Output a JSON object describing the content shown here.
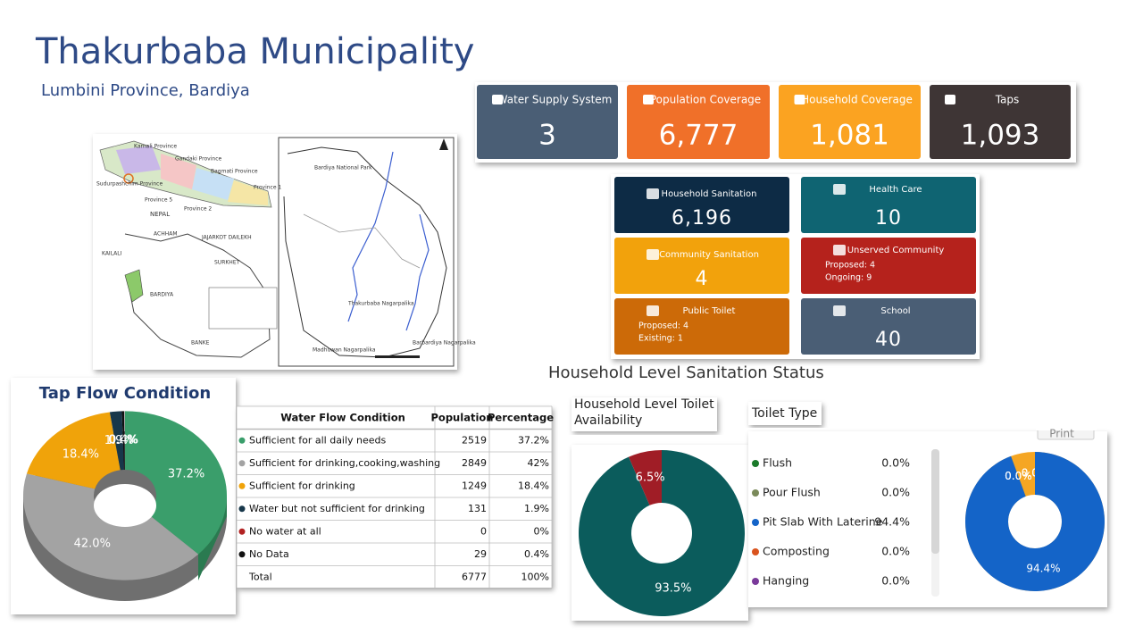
{
  "header": {
    "title": "Thakurbaba Municipality",
    "subtitle": "Lumbini Province, Bardiya"
  },
  "kpis": [
    {
      "label": "Water Supply System",
      "value": "3",
      "color": "#4a5e75"
    },
    {
      "label": "Population Coverage",
      "value": "6,777",
      "color": "#f07029"
    },
    {
      "label": "Household Coverage",
      "value": "1,081",
      "color": "#fba321"
    },
    {
      "label": "Taps",
      "value": "1,093",
      "color": "#3e3535"
    }
  ],
  "sanitation_cards": [
    {
      "label": "Household Sanitation",
      "value": "6,196",
      "color": "#0d2b45"
    },
    {
      "label": "Health Care",
      "value": "10",
      "color": "#0f6472"
    },
    {
      "label": "Community Sanitation",
      "value": "4",
      "color": "#f2a20c"
    },
    {
      "label": "Unserved Community",
      "lines": [
        "Proposed: 4",
        "Ongoing: 9"
      ],
      "color": "#b5221c"
    },
    {
      "label": "Public Toilet",
      "lines": [
        "Proposed: 4",
        "Existing: 1"
      ],
      "color": "#cc6a08"
    },
    {
      "label": "School",
      "value": "40",
      "color": "#4a5e75"
    }
  ],
  "map": {
    "labels": [
      "Karnali Province",
      "Gandaki Province",
      "Bagmati Province",
      "Province 1",
      "Sudurpashchim Province",
      "Province 5",
      "Province 2",
      "NEPAL",
      "ACHHAM",
      "JAJARKOT DAILEKH",
      "KAILALI",
      "SURKHET",
      "BARDIYA",
      "BANKE",
      "Bardiya National Park",
      "Thakurbaba Nagarpalika",
      "Madhuwan Nagarpalika",
      "Barbardiya Nagarpalika"
    ]
  },
  "table": {
    "columns": [
      "Water Flow Condition",
      "Population",
      "Percentage"
    ],
    "rows": [
      [
        "Sufficient for all daily needs",
        "2519",
        "37.2%"
      ],
      [
        "Sufficient for drinking,cooking,washing",
        "2849",
        "42%"
      ],
      [
        "Sufficient for drinking",
        "1249",
        "18.4%"
      ],
      [
        "Water but not sufficient for drinking",
        "131",
        "1.9%"
      ],
      [
        "No water at all",
        "0",
        "0%"
      ],
      [
        "No Data",
        "29",
        "0.4%"
      ],
      [
        "Total",
        "6777",
        "100%"
      ]
    ]
  },
  "sanitation_title": "Household Level Sanitation Status",
  "toilet_type_panel": {
    "button": "Print"
  },
  "chart_data": [
    {
      "type": "pie",
      "title": "Tap Flow Condition",
      "categories": [
        "Sufficient for all daily needs",
        "Sufficient for drinking,cooking,washing",
        "Sufficient for drinking",
        "Water but not sufficient for drinking",
        "No water at all",
        "No Data"
      ],
      "values": [
        37.2,
        42.0,
        18.4,
        1.9,
        0,
        0.4
      ],
      "value_labels": [
        "37.2%",
        "42.0%",
        "18.4%",
        "1.9%",
        "0.0%",
        "0.4%"
      ],
      "colors": [
        "#3a9e6b",
        "#a3a3a3",
        "#f0a30a",
        "#17374a",
        "#b22222",
        "#111111"
      ]
    },
    {
      "type": "pie",
      "title": "Household Level Toilet Availability",
      "values": [
        93.5,
        6.5
      ],
      "value_labels": [
        "93.5%",
        "6.5%"
      ],
      "colors": [
        "#0b5c5c",
        "#a01d26"
      ]
    },
    {
      "type": "pie",
      "title": "Toilet Type",
      "categories": [
        "Flush",
        "Pour Flush",
        "Pit Slab With Laterine",
        "Composting",
        "Hanging"
      ],
      "values": [
        0,
        0,
        94.4,
        0,
        0
      ],
      "value_labels": [
        "0.0%",
        "0.0%",
        "94.4%",
        "0.0%",
        "0.0%"
      ],
      "colors": [
        "#1a7a2a",
        "#7a8a5a",
        "#1464c8",
        "#d9531e",
        "#7a3a9a"
      ]
    }
  ]
}
